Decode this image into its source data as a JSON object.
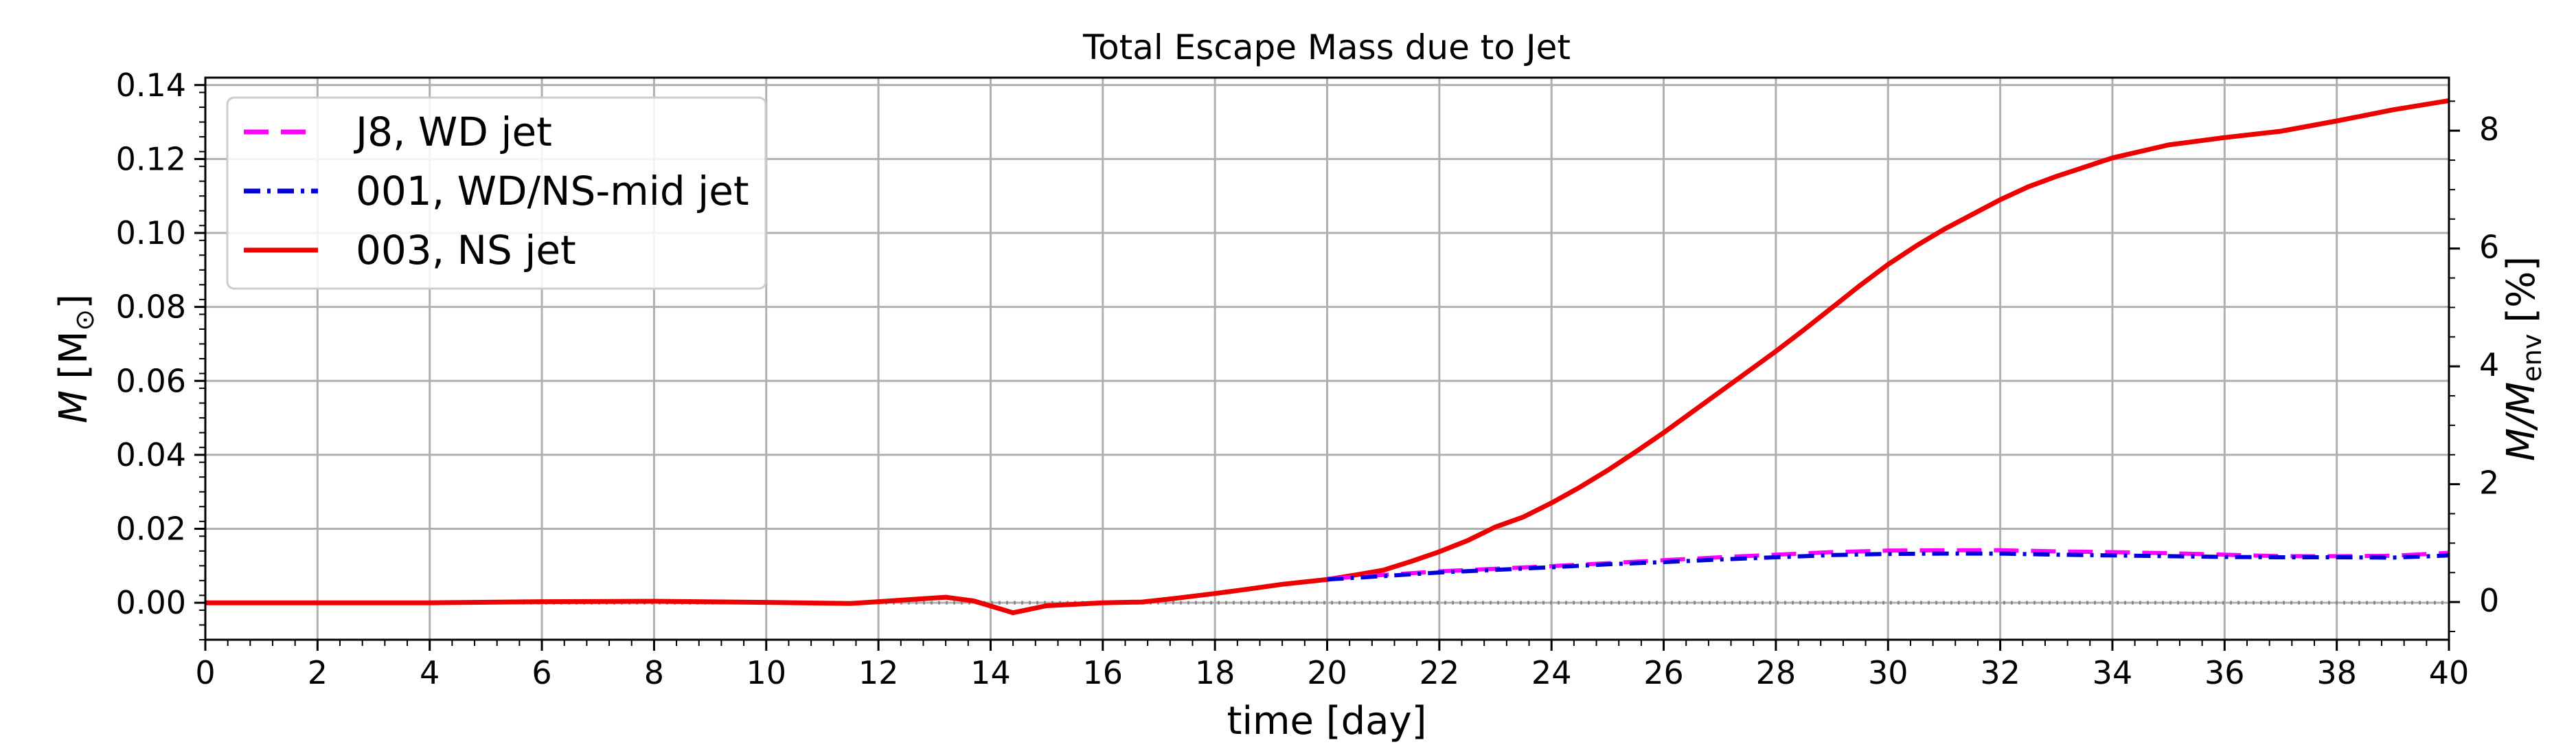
{
  "chart_data": {
    "type": "line",
    "title": "Total Escape Mass due to Jet",
    "xlabel": "time [day]",
    "ylabel_text": "M",
    "ylabel_unit": "[M",
    "ylabel_sub": "⊙",
    "ylabel_close": "]",
    "y2label_text": "M/M",
    "y2label_sub": "env",
    "y2label_unit": "[%]",
    "xlim": [
      0,
      40
    ],
    "ylim": [
      -0.01,
      0.142
    ],
    "y2lim": [
      -0.64,
      8.9
    ],
    "grid": true,
    "legend_position": "top-left",
    "x_ticks": [
      "0",
      "2",
      "4",
      "6",
      "8",
      "10",
      "12",
      "14",
      "16",
      "18",
      "20",
      "22",
      "24",
      "26",
      "28",
      "30",
      "32",
      "34",
      "36",
      "38",
      "40"
    ],
    "y_ticks": [
      "0.00",
      "0.02",
      "0.04",
      "0.06",
      "0.08",
      "0.10",
      "0.12",
      "0.14"
    ],
    "y2_ticks": [
      "0",
      "2",
      "4",
      "6",
      "8"
    ],
    "series": [
      {
        "name": "J8, WD jet",
        "color": "#ff00ff",
        "style": "dashed",
        "x": [
          20,
          21,
          22,
          23,
          24,
          25,
          26,
          27,
          28,
          29,
          30,
          31,
          32,
          33,
          34,
          35,
          36,
          37,
          38,
          39,
          40
        ],
        "y": [
          0.0065,
          0.0075,
          0.0085,
          0.0092,
          0.0099,
          0.0107,
          0.0115,
          0.0123,
          0.013,
          0.0137,
          0.0141,
          0.0142,
          0.0142,
          0.0139,
          0.0137,
          0.0134,
          0.013,
          0.0126,
          0.0126,
          0.0127,
          0.0135
        ]
      },
      {
        "name": "001, WD/NS-mid jet",
        "color": "#0000dd",
        "style": "dashdot",
        "x": [
          20,
          21,
          22,
          23,
          24,
          25,
          26,
          27,
          28,
          29,
          30,
          31,
          32,
          33,
          34,
          35,
          36,
          37,
          38,
          39,
          40
        ],
        "y": [
          0.0063,
          0.0072,
          0.0082,
          0.0089,
          0.0096,
          0.0104,
          0.011,
          0.0117,
          0.0123,
          0.0129,
          0.0132,
          0.0133,
          0.0133,
          0.013,
          0.0128,
          0.0126,
          0.0124,
          0.0123,
          0.0123,
          0.0122,
          0.0128
        ]
      },
      {
        "name": "003, NS jet",
        "color": "#ee0000",
        "style": "solid",
        "x": [
          0,
          2,
          4,
          6,
          8,
          10,
          11.5,
          12.5,
          13.2,
          13.7,
          14.4,
          15,
          16,
          16.7,
          17.3,
          18,
          18.5,
          19.2,
          20,
          20.5,
          21,
          21.5,
          22,
          22.5,
          23,
          23.5,
          24,
          24.5,
          25,
          25.5,
          26,
          26.5,
          27,
          27.5,
          28,
          28.5,
          29,
          29.5,
          30,
          30.5,
          31,
          32,
          32.5,
          33,
          34,
          35,
          36,
          37,
          38,
          39,
          40
        ],
        "y": [
          0.0,
          0.0,
          0.0,
          0.0003,
          0.0004,
          0.0001,
          -0.0002,
          0.0008,
          0.0015,
          0.0005,
          -0.0027,
          -0.0008,
          0.0,
          0.0002,
          0.0012,
          0.0025,
          0.0035,
          0.005,
          0.0063,
          0.0075,
          0.0088,
          0.0112,
          0.0138,
          0.0168,
          0.0205,
          0.0232,
          0.027,
          0.0312,
          0.0358,
          0.0408,
          0.046,
          0.0515,
          0.057,
          0.0625,
          0.068,
          0.0738,
          0.0798,
          0.0858,
          0.0915,
          0.0965,
          0.101,
          0.109,
          0.1125,
          0.1153,
          0.1203,
          0.1238,
          0.1258,
          0.1275,
          0.1303,
          0.1333,
          0.1358
        ]
      }
    ]
  }
}
